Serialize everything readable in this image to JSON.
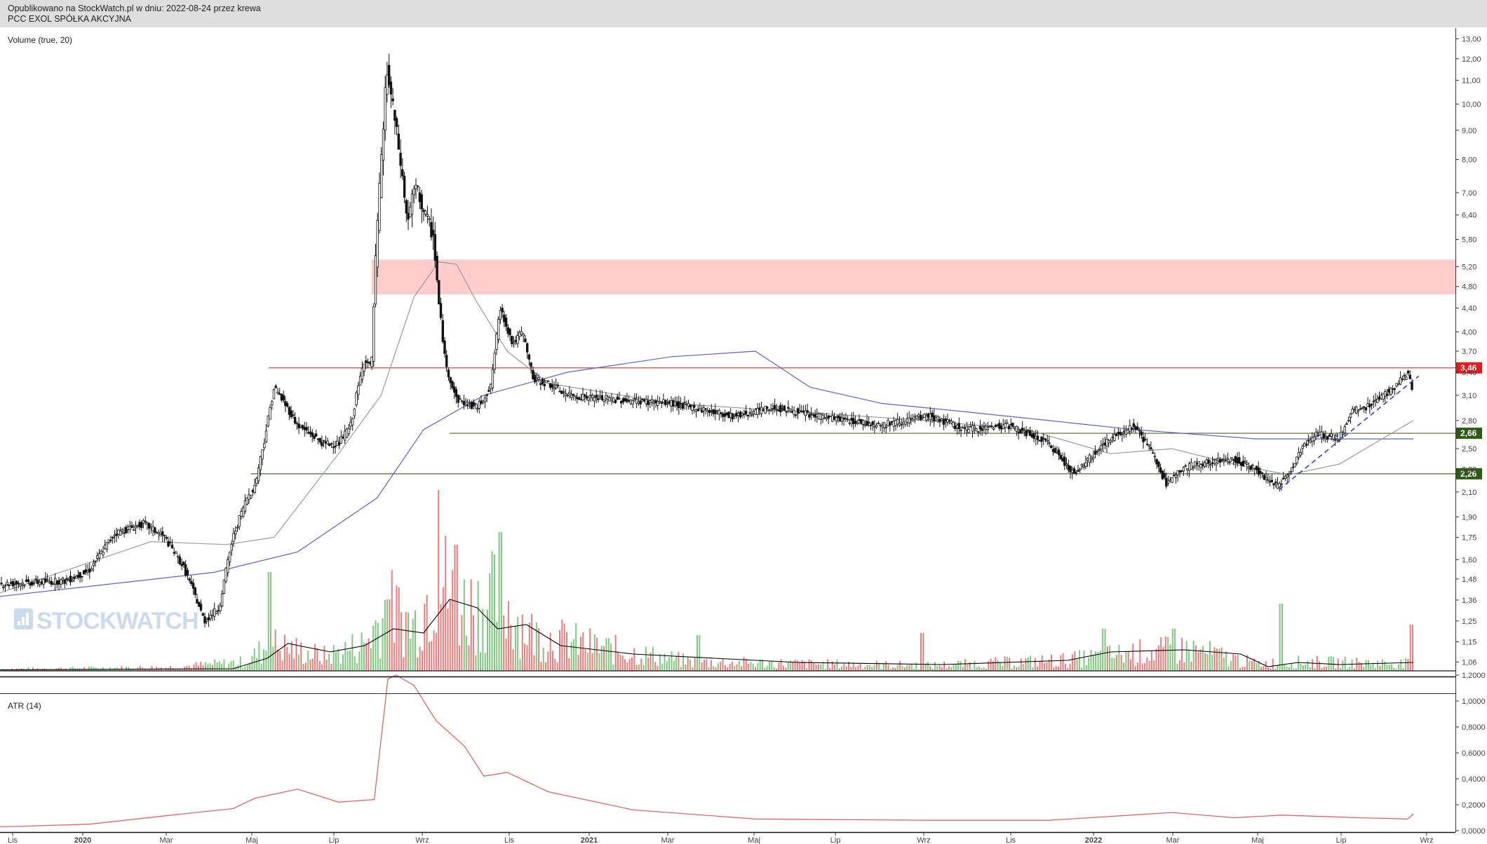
{
  "header": {
    "line1": "Opublikowano na StockWatch.pl w dniu: 2022-08-24 przez krewa",
    "line2": "PCC EXOL SPÓŁKA AKCYJNA"
  },
  "watermark": "STOCKWATCH",
  "chart_data": [
    {
      "type": "candlestick",
      "title": "PCC EXOL SPÓŁKA AKCYJNA",
      "y_scale": "log",
      "ylim": [
        1.0,
        13.5
      ],
      "price_ticks": [
        "13,00",
        "12,00",
        "11,00",
        "10,00",
        "9,00",
        "8,00",
        "7,00",
        "6,40",
        "5,80",
        "5,20",
        "4,80",
        "4,40",
        "4,00",
        "3,70",
        "3,40",
        "3,10",
        "2,80",
        "2,50",
        "2,30",
        "2,10",
        "1,90",
        "1,75",
        "1,60",
        "1,48",
        "1,36",
        "1,25",
        "1,15",
        "1,06"
      ],
      "x_ticks": [
        "Lis",
        "2020",
        "Mar",
        "Maj",
        "Lip",
        "Wrz",
        "Lis",
        "2021",
        "Mar",
        "Maj",
        "Lip",
        "Wrz",
        "Lis",
        "2022",
        "Mar",
        "Maj",
        "Lip",
        "Wrz"
      ],
      "date_range": [
        "2019-10-28",
        "2022-08-24"
      ],
      "price_path": [
        [
          "2019-10-28",
          1.45
        ],
        [
          "2019-12-15",
          1.47
        ],
        [
          "2020-01-01",
          1.53
        ],
        [
          "2020-01-20",
          1.78
        ],
        [
          "2020-02-10",
          1.85
        ],
        [
          "2020-02-25",
          1.75
        ],
        [
          "2020-03-10",
          1.55
        ],
        [
          "2020-03-25",
          1.25
        ],
        [
          "2020-04-05",
          1.32
        ],
        [
          "2020-04-15",
          1.75
        ],
        [
          "2020-04-25",
          2.05
        ],
        [
          "2020-05-01",
          2.15
        ],
        [
          "2020-05-08",
          2.6
        ],
        [
          "2020-05-15",
          3.2
        ],
        [
          "2020-06-01",
          2.75
        ],
        [
          "2020-06-20",
          2.55
        ],
        [
          "2020-07-01",
          2.55
        ],
        [
          "2020-07-10",
          2.75
        ],
        [
          "2020-07-20",
          3.6
        ],
        [
          "2020-07-25",
          3.45
        ],
        [
          "2020-07-29",
          5.9
        ],
        [
          "2020-08-02",
          8.5
        ],
        [
          "2020-08-05",
          11.5
        ],
        [
          "2020-08-12",
          9.0
        ],
        [
          "2020-08-20",
          6.2
        ],
        [
          "2020-08-26",
          7.2
        ],
        [
          "2020-09-02",
          6.4
        ],
        [
          "2020-09-08",
          5.9
        ],
        [
          "2020-09-12",
          4.5
        ],
        [
          "2020-09-17",
          3.5
        ],
        [
          "2020-09-25",
          3.05
        ],
        [
          "2020-10-10",
          2.95
        ],
        [
          "2020-10-20",
          3.2
        ],
        [
          "2020-10-27",
          4.4
        ],
        [
          "2020-11-05",
          3.8
        ],
        [
          "2020-11-12",
          4.0
        ],
        [
          "2020-11-20",
          3.3
        ],
        [
          "2020-12-01",
          3.25
        ],
        [
          "2020-12-15",
          3.1
        ],
        [
          "2021-01-15",
          3.05
        ],
        [
          "2021-03-01",
          3.0
        ],
        [
          "2021-04-15",
          2.85
        ],
        [
          "2021-05-15",
          2.95
        ],
        [
          "2021-06-15",
          2.85
        ],
        [
          "2021-08-01",
          2.75
        ],
        [
          "2021-09-05",
          2.85
        ],
        [
          "2021-10-01",
          2.7
        ],
        [
          "2021-11-01",
          2.75
        ],
        [
          "2021-12-01",
          2.55
        ],
        [
          "2021-12-20",
          2.25
        ],
        [
          "2022-01-10",
          2.55
        ],
        [
          "2022-02-01",
          2.75
        ],
        [
          "2022-02-15",
          2.45
        ],
        [
          "2022-02-25",
          2.15
        ],
        [
          "2022-03-05",
          2.3
        ],
        [
          "2022-03-20",
          2.35
        ],
        [
          "2022-04-15",
          2.4
        ],
        [
          "2022-05-01",
          2.3
        ],
        [
          "2022-05-15",
          2.15
        ],
        [
          "2022-05-25",
          2.25
        ],
        [
          "2022-06-05",
          2.55
        ],
        [
          "2022-06-15",
          2.65
        ],
        [
          "2022-07-01",
          2.6
        ],
        [
          "2022-07-10",
          2.9
        ],
        [
          "2022-07-20",
          2.95
        ],
        [
          "2022-08-10",
          3.2
        ],
        [
          "2022-08-20",
          3.4
        ],
        [
          "2022-08-24",
          3.1
        ]
      ],
      "sma_short_path": [
        [
          "2019-10-28",
          1.4
        ],
        [
          "2020-02-15",
          1.72
        ],
        [
          "2020-04-10",
          1.7
        ],
        [
          "2020-05-15",
          1.75
        ],
        [
          "2020-07-01",
          2.45
        ],
        [
          "2020-08-01",
          3.1
        ],
        [
          "2020-08-25",
          4.6
        ],
        [
          "2020-09-12",
          5.3
        ],
        [
          "2020-09-25",
          5.25
        ],
        [
          "2020-10-10",
          4.5
        ],
        [
          "2020-11-01",
          3.7
        ],
        [
          "2020-12-01",
          3.25
        ],
        [
          "2021-03-01",
          3.0
        ],
        [
          "2021-06-01",
          2.9
        ],
        [
          "2021-09-01",
          2.8
        ],
        [
          "2021-11-15",
          2.7
        ],
        [
          "2022-01-15",
          2.45
        ],
        [
          "2022-03-01",
          2.5
        ],
        [
          "2022-04-15",
          2.35
        ],
        [
          "2022-05-25",
          2.25
        ],
        [
          "2022-07-01",
          2.35
        ],
        [
          "2022-08-24",
          2.8
        ]
      ],
      "sma_long_path": [
        [
          "2019-10-28",
          1.38
        ],
        [
          "2020-04-01",
          1.52
        ],
        [
          "2020-06-01",
          1.65
        ],
        [
          "2020-07-29",
          2.05
        ],
        [
          "2020-09-01",
          2.7
        ],
        [
          "2020-10-15",
          3.1
        ],
        [
          "2020-12-15",
          3.4
        ],
        [
          "2021-03-01",
          3.62
        ],
        [
          "2021-05-01",
          3.7
        ],
        [
          "2021-06-10",
          3.2
        ],
        [
          "2021-08-01",
          3.0
        ],
        [
          "2021-10-01",
          2.9
        ],
        [
          "2021-12-01",
          2.8
        ],
        [
          "2022-02-01",
          2.7
        ],
        [
          "2022-05-01",
          2.6
        ],
        [
          "2022-08-24",
          2.6
        ]
      ],
      "trendline": [
        [
          "2022-05-18",
          2.12
        ],
        [
          "2022-08-28",
          3.35
        ]
      ],
      "zone": {
        "from": 4.65,
        "to": 5.35,
        "start": "2020-07-25",
        "color": "#ffcccc"
      },
      "levels": [
        {
          "label": "3,46",
          "value": 3.46,
          "start": "2020-05-11",
          "color": "#c0392b",
          "badge": "#e21b1b"
        },
        {
          "label": "2,66",
          "value": 2.66,
          "start": "2020-09-20",
          "color": "#4e6b2e",
          "badge": "#2f5a16"
        },
        {
          "label": "2,26",
          "value": 2.26,
          "start": "2020-04-28",
          "color": "#4e6b2e",
          "badge": "#2f5a16"
        }
      ],
      "colors": {
        "candle": "#111111",
        "sma_short": "#9a9a9a",
        "sma_long": "#6060c8",
        "trendline": "#3a3ad0"
      }
    },
    {
      "type": "bar",
      "title": "Volume (true, 20)",
      "colors": {
        "up": "#7fc97f",
        "down": "#ee7b7b",
        "ma": "#000000"
      },
      "volume_path": [
        [
          "2019-10-28",
          0.01
        ],
        [
          "2020-03-01",
          0.02
        ],
        [
          "2020-04-25",
          0.05
        ],
        [
          "2020-05-12",
          0.15
        ],
        [
          "2020-06-20",
          0.08
        ],
        [
          "2020-07-20",
          0.15
        ],
        [
          "2020-08-05",
          0.35
        ],
        [
          "2020-08-25",
          0.25
        ],
        [
          "2020-09-12",
          0.55
        ],
        [
          "2020-09-25",
          0.35
        ],
        [
          "2020-10-27",
          0.4
        ],
        [
          "2020-11-20",
          0.2
        ],
        [
          "2021-01-15",
          0.12
        ],
        [
          "2021-03-15",
          0.05
        ],
        [
          "2021-06-01",
          0.04
        ],
        [
          "2021-09-05",
          0.03
        ],
        [
          "2021-12-15",
          0.06
        ],
        [
          "2022-02-01",
          0.1
        ],
        [
          "2022-03-15",
          0.12
        ],
        [
          "2022-05-01",
          0.04
        ],
        [
          "2022-06-05",
          0.05
        ],
        [
          "2022-08-24",
          0.04
        ]
      ],
      "spikes": [
        [
          "2020-05-12",
          0.47
        ],
        [
          "2020-08-07",
          0.34
        ],
        [
          "2020-09-12",
          0.86
        ],
        [
          "2020-09-25",
          0.6
        ],
        [
          "2020-10-27",
          0.66
        ],
        [
          "2021-03-20",
          0.17
        ],
        [
          "2021-08-31",
          0.18
        ],
        [
          "2022-01-10",
          0.2
        ],
        [
          "2022-03-02",
          0.2
        ],
        [
          "2022-05-20",
          0.32
        ],
        [
          "2022-08-23",
          0.22
        ]
      ],
      "vol_ma_path": [
        [
          "2019-10-28",
          0.005
        ],
        [
          "2020-04-15",
          0.01
        ],
        [
          "2020-05-10",
          0.06
        ],
        [
          "2020-05-25",
          0.13
        ],
        [
          "2020-06-25",
          0.09
        ],
        [
          "2020-07-20",
          0.12
        ],
        [
          "2020-08-10",
          0.2
        ],
        [
          "2020-09-01",
          0.18
        ],
        [
          "2020-09-20",
          0.34
        ],
        [
          "2020-10-10",
          0.3
        ],
        [
          "2020-10-25",
          0.2
        ],
        [
          "2020-11-15",
          0.22
        ],
        [
          "2020-12-10",
          0.12
        ],
        [
          "2021-02-01",
          0.08
        ],
        [
          "2021-04-01",
          0.06
        ],
        [
          "2021-06-01",
          0.04
        ],
        [
          "2021-09-15",
          0.03
        ],
        [
          "2021-12-15",
          0.05
        ],
        [
          "2022-01-15",
          0.09
        ],
        [
          "2022-03-10",
          0.1
        ],
        [
          "2022-04-20",
          0.08
        ],
        [
          "2022-05-10",
          0.02
        ],
        [
          "2022-06-01",
          0.04
        ],
        [
          "2022-07-01",
          0.03
        ],
        [
          "2022-08-24",
          0.04
        ]
      ]
    },
    {
      "type": "line",
      "title": "ATR (14)",
      "ylim": [
        0.0,
        1.2
      ],
      "y_ticks": [
        "1,2000",
        "1,0000",
        "0,8000",
        "0,6000",
        "0,4000",
        "0,2000",
        "0,0000"
      ],
      "color": "#e06666",
      "series": [
        [
          "2019-10-28",
          0.03
        ],
        [
          "2020-01-01",
          0.05
        ],
        [
          "2020-03-01",
          0.12
        ],
        [
          "2020-04-15",
          0.17
        ],
        [
          "2020-05-01",
          0.25
        ],
        [
          "2020-06-01",
          0.32
        ],
        [
          "2020-07-01",
          0.22
        ],
        [
          "2020-07-27",
          0.24
        ],
        [
          "2020-08-06",
          1.17
        ],
        [
          "2020-08-12",
          1.2
        ],
        [
          "2020-08-25",
          1.12
        ],
        [
          "2020-09-10",
          0.85
        ],
        [
          "2020-10-01",
          0.65
        ],
        [
          "2020-10-15",
          0.42
        ],
        [
          "2020-11-01",
          0.45
        ],
        [
          "2020-12-01",
          0.3
        ],
        [
          "2021-02-01",
          0.16
        ],
        [
          "2021-05-01",
          0.09
        ],
        [
          "2021-09-05",
          0.08
        ],
        [
          "2021-12-01",
          0.08
        ],
        [
          "2022-03-01",
          0.14
        ],
        [
          "2022-04-15",
          0.1
        ],
        [
          "2022-05-20",
          0.12
        ],
        [
          "2022-07-15",
          0.1
        ],
        [
          "2022-08-20",
          0.09
        ],
        [
          "2022-08-24",
          0.13
        ]
      ]
    }
  ]
}
